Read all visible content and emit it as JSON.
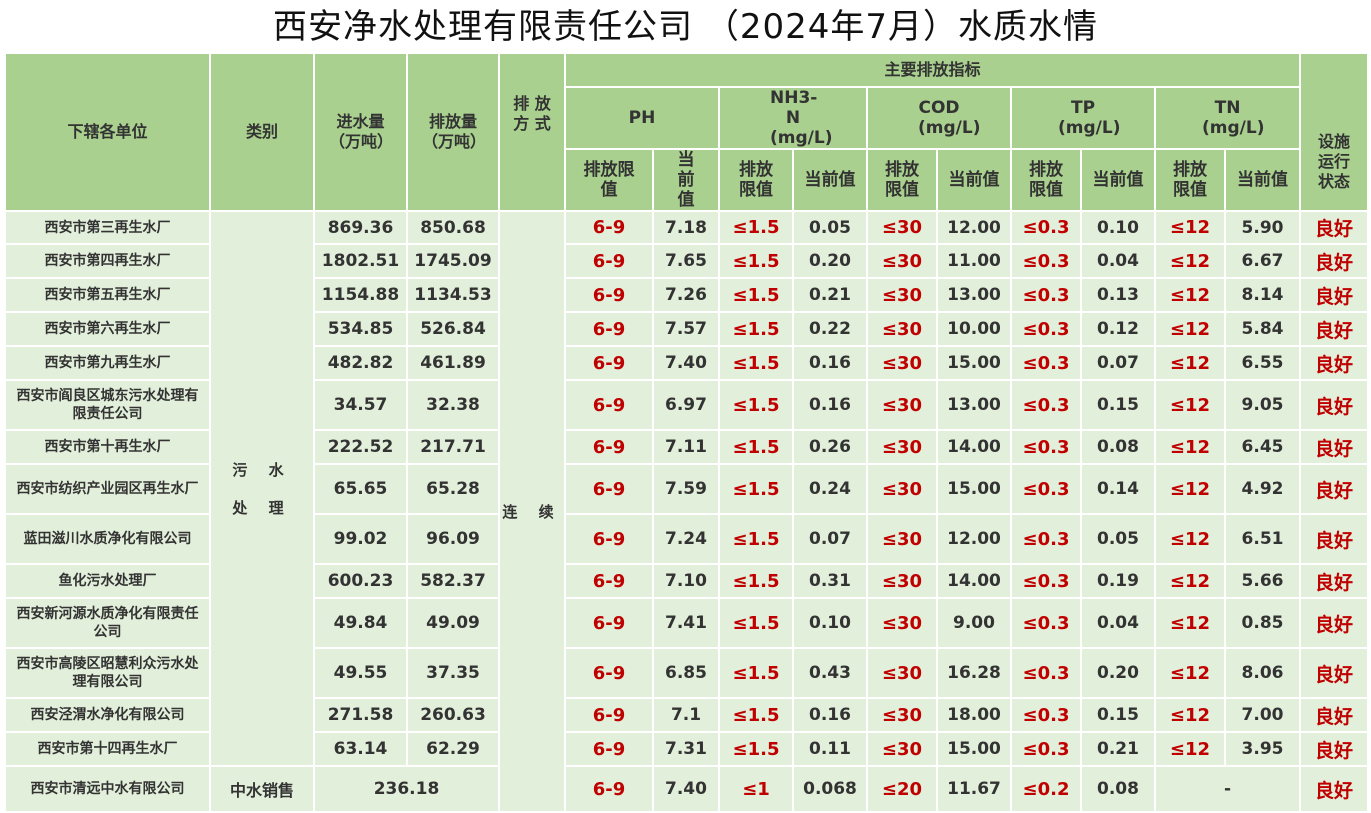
{
  "title": "西安净水处理有限责任公司 （2024年7月）水质水情",
  "headers": {
    "unit": "下辖各单位",
    "category": "类别",
    "inflow": "进水量（万吨）",
    "outflow": "排放量（万吨）",
    "mode": "排 放 方 式",
    "main_indicators": "主要排放指标",
    "ph": "PH",
    "nh3n": "NH3-N (mg/L)",
    "cod": "COD (mg/L)",
    "tp": "TP (mg/L)",
    "tn": "TN (mg/L)",
    "status": "设施运行状态",
    "limit": "排放限值",
    "current": "当前值"
  },
  "category_wastewater": [
    "污 水",
    "处 理"
  ],
  "mode_value": "连 续",
  "rows": [
    {
      "unit": "西安市第三再生水厂",
      "inflow": "869.36",
      "outflow": "850.68",
      "ph_lim": "6-9",
      "ph": "7.18",
      "nh3_lim": "≤1.5",
      "nh3": "0.05",
      "cod_lim": "≤30",
      "cod": "12.00",
      "tp_lim": "≤0.3",
      "tp": "0.10",
      "tn_lim": "≤12",
      "tn": "5.90",
      "status": "良好"
    },
    {
      "unit": "西安市第四再生水厂",
      "inflow": "1802.51",
      "outflow": "1745.09",
      "ph_lim": "6-9",
      "ph": "7.65",
      "nh3_lim": "≤1.5",
      "nh3": "0.20",
      "cod_lim": "≤30",
      "cod": "11.00",
      "tp_lim": "≤0.3",
      "tp": "0.04",
      "tn_lim": "≤12",
      "tn": "6.67",
      "status": "良好"
    },
    {
      "unit": "西安市第五再生水厂",
      "inflow": "1154.88",
      "outflow": "1134.53",
      "ph_lim": "6-9",
      "ph": "7.26",
      "nh3_lim": "≤1.5",
      "nh3": "0.21",
      "cod_lim": "≤30",
      "cod": "13.00",
      "tp_lim": "≤0.3",
      "tp": "0.13",
      "tn_lim": "≤12",
      "tn": "8.14",
      "status": "良好"
    },
    {
      "unit": "西安市第六再生水厂",
      "inflow": "534.85",
      "outflow": "526.84",
      "ph_lim": "6-9",
      "ph": "7.57",
      "nh3_lim": "≤1.5",
      "nh3": "0.22",
      "cod_lim": "≤30",
      "cod": "10.00",
      "tp_lim": "≤0.3",
      "tp": "0.12",
      "tn_lim": "≤12",
      "tn": "5.84",
      "status": "良好"
    },
    {
      "unit": "西安市第九再生水厂",
      "inflow": "482.82",
      "outflow": "461.89",
      "ph_lim": "6-9",
      "ph": "7.40",
      "nh3_lim": "≤1.5",
      "nh3": "0.16",
      "cod_lim": "≤30",
      "cod": "15.00",
      "tp_lim": "≤0.3",
      "tp": "0.07",
      "tn_lim": "≤12",
      "tn": "6.55",
      "status": "良好"
    },
    {
      "unit": "西安市阎良区城东污水处理有限责任公司",
      "inflow": "34.57",
      "outflow": "32.38",
      "ph_lim": "6-9",
      "ph": "6.97",
      "nh3_lim": "≤1.5",
      "nh3": "0.16",
      "cod_lim": "≤30",
      "cod": "13.00",
      "tp_lim": "≤0.3",
      "tp": "0.15",
      "tn_lim": "≤12",
      "tn": "9.05",
      "status": "良好"
    },
    {
      "unit": "西安市第十再生水厂",
      "inflow": "222.52",
      "outflow": "217.71",
      "ph_lim": "6-9",
      "ph": "7.11",
      "nh3_lim": "≤1.5",
      "nh3": "0.26",
      "cod_lim": "≤30",
      "cod": "14.00",
      "tp_lim": "≤0.3",
      "tp": "0.08",
      "tn_lim": "≤12",
      "tn": "6.45",
      "status": "良好"
    },
    {
      "unit": "西安市纺织产业园区再生水厂",
      "inflow": "65.65",
      "outflow": "65.28",
      "ph_lim": "6-9",
      "ph": "7.59",
      "nh3_lim": "≤1.5",
      "nh3": "0.24",
      "cod_lim": "≤30",
      "cod": "15.00",
      "tp_lim": "≤0.3",
      "tp": "0.14",
      "tn_lim": "≤12",
      "tn": "4.92",
      "status": "良好"
    },
    {
      "unit": "蓝田滋川水质净化有限公司",
      "inflow": "99.02",
      "outflow": "96.09",
      "ph_lim": "6-9",
      "ph": "7.24",
      "nh3_lim": "≤1.5",
      "nh3": "0.07",
      "cod_lim": "≤30",
      "cod": "12.00",
      "tp_lim": "≤0.3",
      "tp": "0.05",
      "tn_lim": "≤12",
      "tn": "6.51",
      "status": "良好"
    },
    {
      "unit": "鱼化污水处理厂",
      "inflow": "600.23",
      "outflow": "582.37",
      "ph_lim": "6-9",
      "ph": "7.10",
      "nh3_lim": "≤1.5",
      "nh3": "0.31",
      "cod_lim": "≤30",
      "cod": "14.00",
      "tp_lim": "≤0.3",
      "tp": "0.19",
      "tn_lim": "≤12",
      "tn": "5.66",
      "status": "良好"
    },
    {
      "unit": "西安新河源水质净化有限责任公司",
      "inflow": "49.84",
      "outflow": "49.09",
      "ph_lim": "6-9",
      "ph": "7.41",
      "nh3_lim": "≤1.5",
      "nh3": "0.10",
      "cod_lim": "≤30",
      "cod": "9.00",
      "tp_lim": "≤0.3",
      "tp": "0.04",
      "tn_lim": "≤12",
      "tn": "0.85",
      "status": "良好"
    },
    {
      "unit": "西安市高陵区昭慧利众污水处理有限公司",
      "inflow": "49.55",
      "outflow": "37.35",
      "ph_lim": "6-9",
      "ph": "6.85",
      "nh3_lim": "≤1.5",
      "nh3": "0.43",
      "cod_lim": "≤30",
      "cod": "16.28",
      "tp_lim": "≤0.3",
      "tp": "0.20",
      "tn_lim": "≤12",
      "tn": "8.06",
      "status": "良好"
    },
    {
      "unit": "西安泾渭水净化有限公司",
      "inflow": "271.58",
      "outflow": "260.63",
      "ph_lim": "6-9",
      "ph": "7.1",
      "nh3_lim": "≤1.5",
      "nh3": "0.16",
      "cod_lim": "≤30",
      "cod": "18.00",
      "tp_lim": "≤0.3",
      "tp": "0.15",
      "tn_lim": "≤12",
      "tn": "7.00",
      "status": "良好"
    },
    {
      "unit": "西安市第十四再生水厂",
      "inflow": "63.14",
      "outflow": "62.29",
      "ph_lim": "6-9",
      "ph": "7.31",
      "nh3_lim": "≤1.5",
      "nh3": "0.11",
      "cod_lim": "≤30",
      "cod": "15.00",
      "tp_lim": "≤0.3",
      "tp": "0.21",
      "tn_lim": "≤12",
      "tn": "3.95",
      "status": "良好"
    }
  ],
  "last_row": {
    "unit": "西安市清远中水有限公司",
    "category": "中水销售",
    "volume": "236.18",
    "ph_lim": "6-9",
    "ph": "7.40",
    "nh3_lim": "≤1",
    "nh3": "0.068",
    "cod_lim": "≤20",
    "cod": "11.67",
    "tp_lim": "≤0.2",
    "tp": "0.08",
    "tn": "-",
    "status": "良好"
  }
}
